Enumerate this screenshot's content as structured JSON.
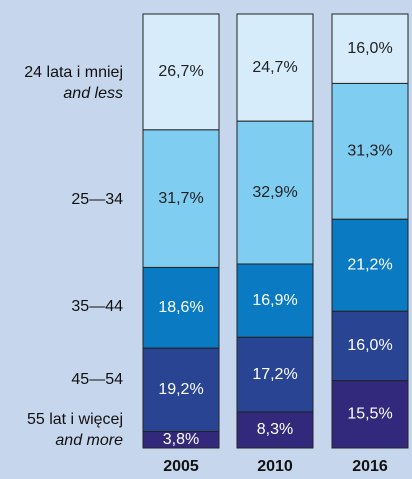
{
  "chart_data": {
    "type": "stacked_bar",
    "categories": [
      "2005",
      "2010",
      "2016"
    ],
    "ylim": [
      0,
      100
    ],
    "series": [
      {
        "name": "24 lata i mniej",
        "name_en": "and less",
        "color": "#d6ecfb",
        "values": [
          26.7,
          24.7,
          16.0
        ],
        "value_labels": [
          "26,7%",
          "24,7%",
          "16,0%"
        ]
      },
      {
        "name": "25—34",
        "color": "#80cdf2",
        "values": [
          31.7,
          32.9,
          31.3
        ],
        "value_labels": [
          "31,7%",
          "32,9%",
          "31,3%"
        ]
      },
      {
        "name": "35—44",
        "color": "#0a7bc2",
        "values": [
          18.6,
          16.9,
          21.2
        ],
        "value_labels": [
          "18,6%",
          "16,9%",
          "21,2%"
        ]
      },
      {
        "name": "45—54",
        "color": "#2a4494",
        "values": [
          19.2,
          17.2,
          16.0
        ],
        "value_labels": [
          "19,2%",
          "17,2%",
          "16,0%"
        ]
      },
      {
        "name": "55 lat i więcej",
        "name_en": "and more",
        "color": "#33297c",
        "values": [
          3.8,
          8.3,
          15.5
        ],
        "value_labels": [
          "3,8%",
          "8,3%",
          "15,5%"
        ]
      }
    ]
  }
}
